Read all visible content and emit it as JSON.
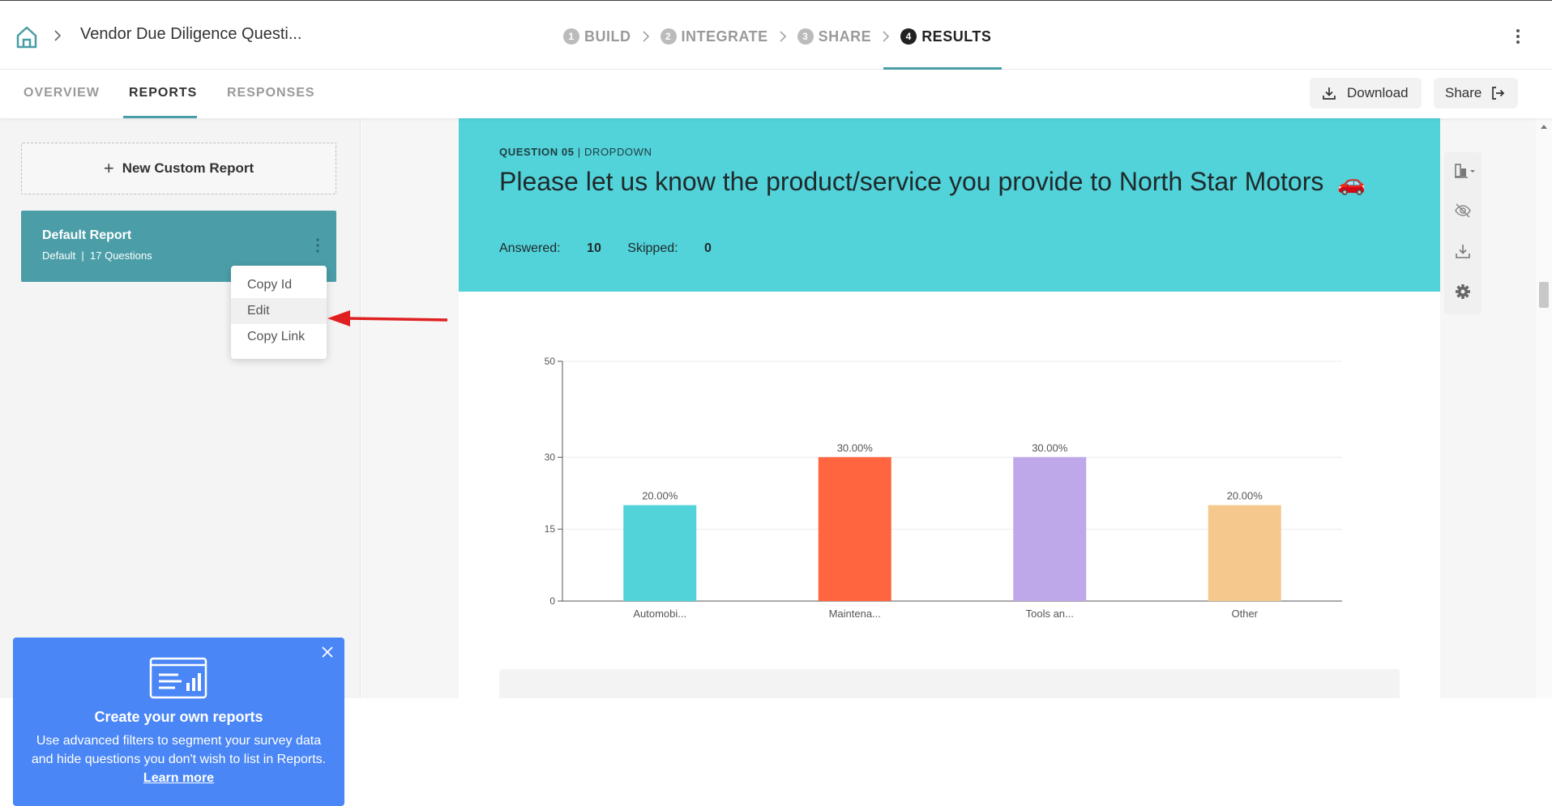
{
  "header": {
    "survey_title": "Vendor Due Diligence Questi...",
    "steps": [
      {
        "num": "1",
        "label": "BUILD"
      },
      {
        "num": "2",
        "label": "INTEGRATE"
      },
      {
        "num": "3",
        "label": "SHARE"
      },
      {
        "num": "4",
        "label": "RESULTS"
      }
    ]
  },
  "subnav": {
    "tabs": [
      "OVERVIEW",
      "REPORTS",
      "RESPONSES"
    ],
    "download_label": "Download",
    "share_label": "Share"
  },
  "sidebar": {
    "new_report_label": "New Custom Report",
    "default_report": {
      "title": "Default Report",
      "subtitle": "Default  |  17 Questions"
    },
    "menu": [
      "Copy Id",
      "Edit",
      "Copy Link"
    ],
    "promo": {
      "title": "Create your own reports",
      "text": "Use advanced filters to segment your survey data and hide questions you don't wish to list in Reports.",
      "link": "Learn more"
    }
  },
  "question": {
    "number_label": "QUESTION 05",
    "type_label": "DROPDOWN",
    "text": "Please let us know the product/service you provide to North Star Motors",
    "emoji": "🚗",
    "answered_label": "Answered:",
    "answered": "10",
    "skipped_label": "Skipped:",
    "skipped": "0"
  },
  "colors": {
    "accent": "#4a9da6",
    "header_bg": "#52d2d9",
    "promo_bg": "#4a86f5"
  },
  "chart_data": {
    "type": "bar",
    "categories": [
      "Automobi...",
      "Maintena...",
      "Tools an...",
      "Other"
    ],
    "values": [
      20,
      30,
      30,
      20
    ],
    "data_labels": [
      "20.00%",
      "30.00%",
      "30.00%",
      "20.00%"
    ],
    "colors": [
      "#52d2d9",
      "#ff6640",
      "#bfa8ea",
      "#f5c98d"
    ],
    "yticks": [
      0,
      15,
      30,
      50
    ],
    "ylim": [
      0,
      50
    ],
    "grid": true
  }
}
